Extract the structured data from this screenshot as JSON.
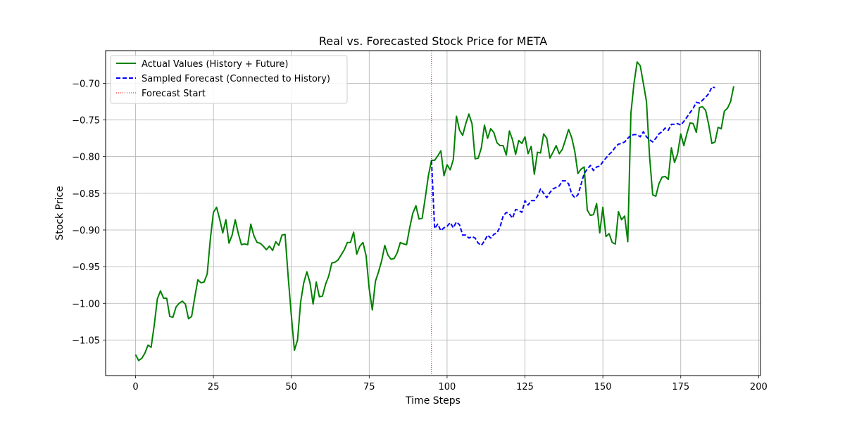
{
  "chart_data": {
    "type": "line",
    "title": "Real vs. Forecasted Stock Price for META",
    "xlabel": "Time Steps",
    "ylabel": "Stock Price",
    "xlim": [
      -9.6,
      200.6
    ],
    "ylim": [
      -1.0985,
      -0.6555
    ],
    "xticks": [
      0,
      25,
      50,
      75,
      100,
      125,
      150,
      175,
      200
    ],
    "yticks": [
      -1.05,
      -1.0,
      -0.95,
      -0.9,
      -0.85,
      -0.8,
      -0.75,
      -0.7
    ],
    "ytick_labels": [
      "−1.05",
      "−1.00",
      "−0.95",
      "−0.90",
      "−0.85",
      "−0.80",
      "−0.75",
      "−0.70"
    ],
    "grid": true,
    "legend_position": "top-left",
    "forecast_start_x": 95,
    "series": [
      {
        "name": "Actual Values (History + Future)",
        "color": "#008000",
        "style": "solid",
        "x_start": 0,
        "values": [
          -1.07,
          -1.078,
          -1.075,
          -1.068,
          -1.057,
          -1.06,
          -1.03,
          -0.994,
          -0.983,
          -0.993,
          -0.993,
          -1.018,
          -1.019,
          -1.005,
          -1.0,
          -0.997,
          -1.001,
          -1.021,
          -1.018,
          -0.992,
          -0.968,
          -0.972,
          -0.971,
          -0.96,
          -0.913,
          -0.876,
          -0.869,
          -0.885,
          -0.904,
          -0.886,
          -0.918,
          -0.907,
          -0.886,
          -0.905,
          -0.92,
          -0.919,
          -0.92,
          -0.892,
          -0.908,
          -0.917,
          -0.918,
          -0.922,
          -0.927,
          -0.922,
          -0.928,
          -0.916,
          -0.921,
          -0.907,
          -0.906,
          -0.964,
          -1.016,
          -1.064,
          -1.05,
          -0.998,
          -0.972,
          -0.957,
          -0.972,
          -1.001,
          -0.971,
          -0.991,
          -0.99,
          -0.974,
          -0.963,
          -0.945,
          -0.944,
          -0.941,
          -0.934,
          -0.927,
          -0.917,
          -0.917,
          -0.903,
          -0.933,
          -0.922,
          -0.917,
          -0.935,
          -0.98,
          -1.009,
          -0.97,
          -0.957,
          -0.942,
          -0.921,
          -0.934,
          -0.94,
          -0.939,
          -0.931,
          -0.917,
          -0.919,
          -0.92,
          -0.897,
          -0.877,
          -0.867,
          -0.885,
          -0.884,
          -0.856,
          -0.826,
          -0.805,
          -0.805,
          -0.799,
          -0.792,
          -0.826,
          -0.811,
          -0.818,
          -0.804,
          -0.745,
          -0.764,
          -0.771,
          -0.755,
          -0.742,
          -0.755,
          -0.803,
          -0.802,
          -0.788,
          -0.757,
          -0.775,
          -0.762,
          -0.767,
          -0.781,
          -0.785,
          -0.785,
          -0.798,
          -0.765,
          -0.777,
          -0.797,
          -0.778,
          -0.782,
          -0.773,
          -0.796,
          -0.786,
          -0.824,
          -0.794,
          -0.795,
          -0.769,
          -0.775,
          -0.802,
          -0.794,
          -0.785,
          -0.796,
          -0.79,
          -0.777,
          -0.763,
          -0.774,
          -0.793,
          -0.823,
          -0.817,
          -0.814,
          -0.873,
          -0.88,
          -0.879,
          -0.864,
          -0.904,
          -0.869,
          -0.909,
          -0.905,
          -0.917,
          -0.919,
          -0.875,
          -0.886,
          -0.881,
          -0.916,
          -0.741,
          -0.7,
          -0.671,
          -0.676,
          -0.7,
          -0.725,
          -0.8,
          -0.852,
          -0.854,
          -0.837,
          -0.828,
          -0.827,
          -0.831,
          -0.788,
          -0.808,
          -0.796,
          -0.769,
          -0.785,
          -0.768,
          -0.754,
          -0.755,
          -0.767,
          -0.733,
          -0.732,
          -0.737,
          -0.757,
          -0.782,
          -0.78,
          -0.76,
          -0.762,
          -0.738,
          -0.734,
          -0.725,
          -0.704
        ]
      },
      {
        "name": "Sampled Forecast (Connected to History)",
        "color": "#0000ff",
        "style": "dashed",
        "x_start": 95,
        "values": [
          -0.805,
          -0.898,
          -0.892,
          -0.901,
          -0.897,
          -0.895,
          -0.89,
          -0.897,
          -0.889,
          -0.893,
          -0.907,
          -0.907,
          -0.911,
          -0.909,
          -0.911,
          -0.918,
          -0.921,
          -0.915,
          -0.907,
          -0.911,
          -0.906,
          -0.904,
          -0.896,
          -0.881,
          -0.876,
          -0.878,
          -0.884,
          -0.872,
          -0.873,
          -0.876,
          -0.86,
          -0.866,
          -0.86,
          -0.86,
          -0.854,
          -0.844,
          -0.85,
          -0.856,
          -0.849,
          -0.844,
          -0.842,
          -0.84,
          -0.833,
          -0.833,
          -0.837,
          -0.851,
          -0.856,
          -0.852,
          -0.838,
          -0.823,
          -0.817,
          -0.812,
          -0.819,
          -0.814,
          -0.813,
          -0.807,
          -0.802,
          -0.797,
          -0.793,
          -0.787,
          -0.783,
          -0.782,
          -0.78,
          -0.775,
          -0.771,
          -0.77,
          -0.77,
          -0.773,
          -0.766,
          -0.773,
          -0.777,
          -0.78,
          -0.775,
          -0.769,
          -0.766,
          -0.761,
          -0.764,
          -0.756,
          -0.756,
          -0.755,
          -0.757,
          -0.752,
          -0.746,
          -0.74,
          -0.734,
          -0.726,
          -0.727,
          -0.723,
          -0.719,
          -0.714,
          -0.705,
          -0.706
        ]
      }
    ],
    "legend": [
      {
        "label": "Actual Values (History + Future)",
        "color": "#008000",
        "style": "solid"
      },
      {
        "label": "Sampled Forecast (Connected to History)",
        "color": "#0000ff",
        "style": "dashed"
      },
      {
        "label": "Forecast Start",
        "color": "#ff0000",
        "style": "dotted"
      }
    ]
  }
}
